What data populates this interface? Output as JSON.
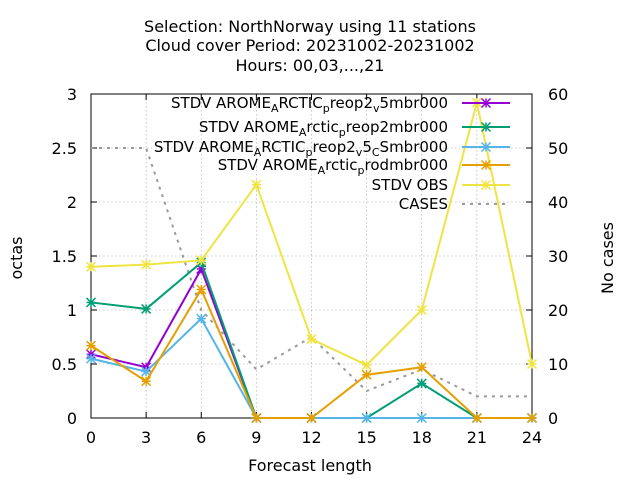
{
  "title_lines": [
    "Selection: NorthNorway using    11 stations",
    "Cloud cover   Period: 20231002-20231002",
    "Hours:  00,03,...,21"
  ],
  "chart_data": {
    "type": "line",
    "x": [
      0,
      3,
      6,
      9,
      12,
      15,
      18,
      21,
      24
    ],
    "xlabel": "Forecast length",
    "ylabel": "octas",
    "y2label": "No cases",
    "xlim": [
      0,
      24
    ],
    "ylim": [
      0,
      3
    ],
    "y2lim": [
      0,
      60
    ],
    "xticks": [
      0,
      3,
      6,
      9,
      12,
      15,
      18,
      21,
      24
    ],
    "yticks": [
      0,
      0.5,
      1,
      1.5,
      2,
      2.5,
      3
    ],
    "yticklabels": [
      "0",
      "0.5",
      "1",
      "1.5",
      "2",
      "2.5",
      "3"
    ],
    "y2ticks": [
      0,
      10,
      20,
      30,
      40,
      50,
      60
    ],
    "grid": true,
    "legend_position": "top-right",
    "series": [
      {
        "name": "STDV AROME_ARCTIC_preop2_v5mbr000",
        "color": "#9400d3",
        "marker": "star",
        "dash": false,
        "axis": "y",
        "values": [
          0.59,
          0.47,
          1.38,
          0,
          0,
          null,
          null,
          null,
          null
        ]
      },
      {
        "name": "STDV AROME_Arctic_preop2mbr000",
        "color": "#009e73",
        "marker": "star",
        "dash": false,
        "axis": "y",
        "values": [
          1.07,
          1.01,
          1.44,
          0,
          0,
          0,
          0.32,
          0,
          0
        ]
      },
      {
        "name": "STDV AROME_ARCTIC_preop2_v5_CSmbr000",
        "color": "#56b4e9",
        "marker": "star",
        "dash": false,
        "axis": "y",
        "values": [
          0.55,
          0.43,
          0.92,
          0,
          0,
          0,
          0,
          0,
          0
        ]
      },
      {
        "name": "STDV AROME_Arctic_prodmbr000",
        "color": "#e69f00",
        "marker": "star",
        "dash": false,
        "axis": "y",
        "values": [
          0.67,
          0.34,
          1.19,
          0,
          0,
          0.4,
          0.47,
          0,
          0
        ]
      },
      {
        "name": "STDV OBS",
        "color": "#f0e442",
        "marker": "star",
        "dash": false,
        "axis": "y",
        "values": [
          1.4,
          1.42,
          1.46,
          2.16,
          0.73,
          0.49,
          1.0,
          2.92,
          0.5
        ]
      },
      {
        "name": "CASES",
        "color": "#999999",
        "marker": "none",
        "dash": true,
        "axis": "y2",
        "values": [
          50,
          50,
          20,
          9,
          15,
          5,
          9,
          4,
          4
        ]
      }
    ]
  },
  "legend_entries": [
    {
      "main": "STDV AROME",
      "parts": [
        [
          "A",
          "sub"
        ],
        [
          "RCTIC",
          ""
        ],
        [
          "p",
          "sub"
        ],
        [
          "reop2",
          ""
        ],
        [
          "v",
          "sub"
        ],
        [
          "5mbr000",
          ""
        ]
      ]
    },
    {
      "main": "STDV AROME",
      "parts": [
        [
          "A",
          "sub"
        ],
        [
          "rctic",
          ""
        ],
        [
          "p",
          "sub"
        ],
        [
          "reop2mbr000",
          ""
        ]
      ]
    },
    {
      "main": "STDV AROME",
      "parts": [
        [
          "A",
          "sub"
        ],
        [
          "RCTIC",
          ""
        ],
        [
          "p",
          "sub"
        ],
        [
          "reop2",
          ""
        ],
        [
          "v",
          "sub"
        ],
        [
          "5",
          ""
        ],
        [
          "C",
          "sub"
        ],
        [
          "Smbr000",
          ""
        ]
      ]
    },
    {
      "main": "STDV AROME",
      "parts": [
        [
          "A",
          "sub"
        ],
        [
          "rctic",
          ""
        ],
        [
          "p",
          "sub"
        ],
        [
          "rodmbr000",
          ""
        ]
      ]
    },
    {
      "main": "STDV OBS",
      "parts": []
    },
    {
      "main": "CASES",
      "parts": []
    }
  ]
}
